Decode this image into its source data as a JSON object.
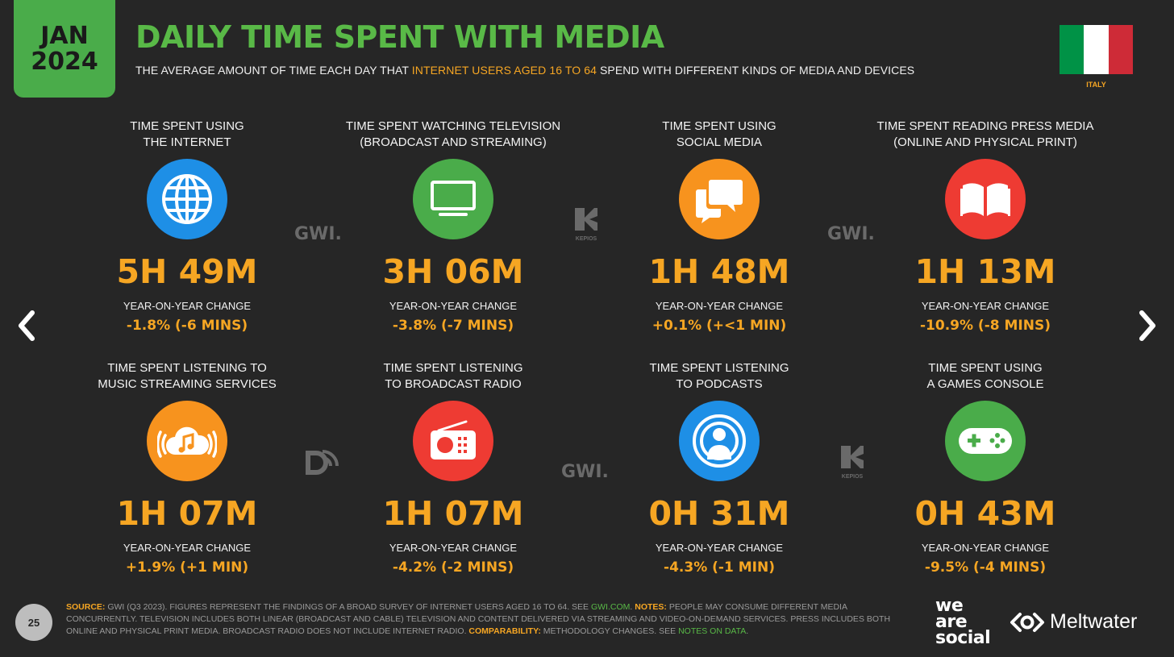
{
  "header": {
    "date_month": "JAN",
    "date_year": "2024",
    "title": "DAILY TIME SPENT WITH MEDIA",
    "subtitle_pre": "THE AVERAGE AMOUNT OF TIME EACH DAY THAT ",
    "subtitle_highlight": "INTERNET USERS AGED 16 TO 64",
    "subtitle_post": " SPEND WITH DIFFERENT KINDS OF MEDIA AND DEVICES",
    "country": "ITALY",
    "flag_colors": [
      "#009246",
      "#ffffff",
      "#ce2b37"
    ]
  },
  "yoy_label": "YEAR-ON-YEAR CHANGE",
  "cards": [
    {
      "label_1": "TIME SPENT USING",
      "label_2": "THE INTERNET",
      "value": "5H 49M",
      "change": "-1.8% (-6 MINS)",
      "icon": "globe-icon",
      "color": "#1e8fe6"
    },
    {
      "label_1": "TIME SPENT WATCHING TELEVISION",
      "label_2": "(BROADCAST AND STREAMING)",
      "value": "3H 06M",
      "change": "-3.8% (-7 MINS)",
      "icon": "television-icon",
      "color": "#4aac4a"
    },
    {
      "label_1": "TIME SPENT USING",
      "label_2": "SOCIAL MEDIA",
      "value": "1H 48M",
      "change": "+0.1% (+<1 MIN)",
      "icon": "chat-bubbles-icon",
      "color": "#f7931e"
    },
    {
      "label_1": "TIME SPENT READING PRESS MEDIA",
      "label_2": "(ONLINE AND PHYSICAL PRINT)",
      "value": "1H 13M",
      "change": "-10.9% (-8 MINS)",
      "icon": "open-book-icon",
      "color": "#ee3b33"
    },
    {
      "label_1": "TIME SPENT LISTENING TO",
      "label_2": "MUSIC STREAMING SERVICES",
      "value": "1H 07M",
      "change": "+1.9% (+1 MIN)",
      "icon": "music-cloud-icon",
      "color": "#f7931e"
    },
    {
      "label_1": "TIME SPENT LISTENING",
      "label_2": "TO BROADCAST RADIO",
      "value": "1H 07M",
      "change": "-4.2% (-2 MINS)",
      "icon": "radio-icon",
      "color": "#ee3b33"
    },
    {
      "label_1": "TIME SPENT LISTENING",
      "label_2": "TO PODCASTS",
      "value": "0H 31M",
      "change": "-4.3% (-1 MIN)",
      "icon": "podcast-icon",
      "color": "#1e8fe6"
    },
    {
      "label_1": "TIME SPENT USING",
      "label_2": "A GAMES CONSOLE",
      "value": "0H 43M",
      "change": "-9.5% (-4 MINS)",
      "icon": "gamepad-icon",
      "color": "#4aac4a"
    }
  ],
  "watermarks": {
    "gwi": "GWI.",
    "kepios": "KEPIOS"
  },
  "footer": {
    "page_number": "25",
    "source_key": "SOURCE:",
    "source_text": " GWI (Q3 2023). FIGURES REPRESENT THE FINDINGS OF A BROAD SURVEY OF INTERNET USERS AGED 16 TO 64. SEE ",
    "source_link": "GWI.COM",
    "notes_key": " NOTES:",
    "notes_text": " PEOPLE MAY CONSUME DIFFERENT MEDIA CONCURRENTLY. TELEVISION INCLUDES BOTH LINEAR (BROADCAST AND CABLE) TELEVISION AND CONTENT DELIVERED VIA STREAMING AND VIDEO-ON-DEMAND SERVICES. PRESS INCLUDES BOTH ONLINE AND PHYSICAL PRINT MEDIA. BROADCAST RADIO DOES NOT INCLUDE INTERNET RADIO.",
    "comparability_key": " COMPARABILITY:",
    "comparability_text": " METHODOLOGY CHANGES. SEE ",
    "notes_link": "NOTES ON DATA",
    "end": "."
  },
  "brands": {
    "we": "we",
    "are": "are",
    "social": "social",
    "meltwater": "Meltwater"
  }
}
